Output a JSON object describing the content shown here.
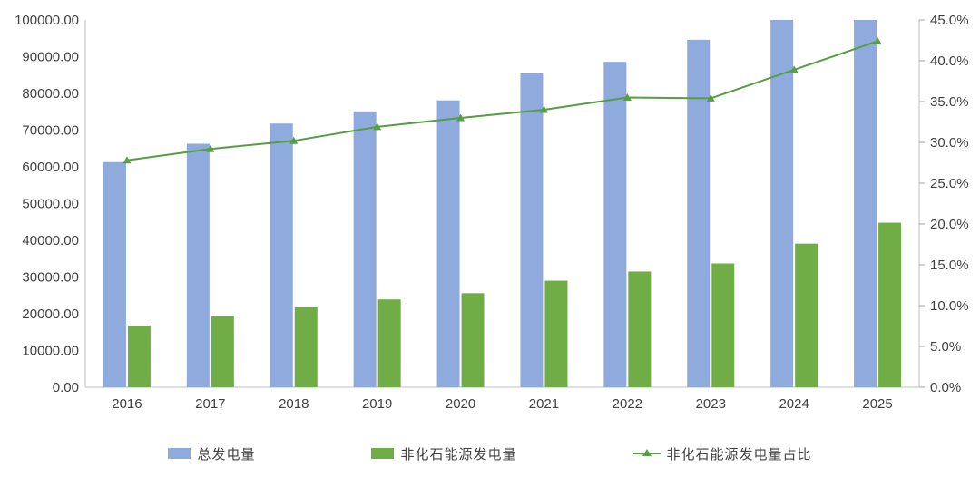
{
  "chart_data": {
    "type": "combo",
    "title": "",
    "categories": [
      "2016",
      "2017",
      "2018",
      "2019",
      "2020",
      "2021",
      "2022",
      "2023",
      "2024",
      "2025"
    ],
    "series": [
      {
        "name": "总发电量",
        "type": "bar",
        "axis": "left",
        "color": "#8FAADC",
        "values": [
          61300,
          66300,
          71800,
          75100,
          78100,
          85500,
          88600,
          94600,
          100600,
          105700
        ]
      },
      {
        "name": "非化石能源发电量",
        "type": "bar",
        "axis": "left",
        "color": "#70AD47",
        "values": [
          16800,
          19300,
          21800,
          23900,
          25600,
          29000,
          31500,
          33700,
          39100,
          44800
        ]
      },
      {
        "name": "非化石能源发电量占比",
        "type": "line",
        "axis": "right",
        "color": "#569D44",
        "marker": "triangle-up",
        "values": [
          27.8,
          29.2,
          30.2,
          31.9,
          33.0,
          34.0,
          35.5,
          35.4,
          38.9,
          42.4
        ]
      }
    ],
    "left_axis": {
      "min": 0,
      "max": 100000,
      "tick_step": 10000,
      "tick_labels": [
        "100000.00",
        "90000.00",
        "80000.00",
        "70000.00",
        "60000.00",
        "50000.00",
        "40000.00",
        "30000.00",
        "20000.00",
        "10000.00",
        "0.00"
      ],
      "bars_clipped_at_max": [
        "2024",
        "2025"
      ]
    },
    "right_axis": {
      "min": 0,
      "max": 45,
      "tick_step": 5,
      "tick_labels": [
        "45.0%",
        "40.0%",
        "35.0%",
        "30.0%",
        "25.0%",
        "20.0%",
        "15.0%",
        "10.0%",
        "5.0%",
        "0.0%"
      ]
    },
    "grid": false,
    "legend_position": "bottom",
    "colors": {
      "axis_line": "#BFBFBF",
      "tick_mark": "#A6A6A6",
      "label_text": "#404040",
      "background": "#FFFFFF"
    }
  }
}
